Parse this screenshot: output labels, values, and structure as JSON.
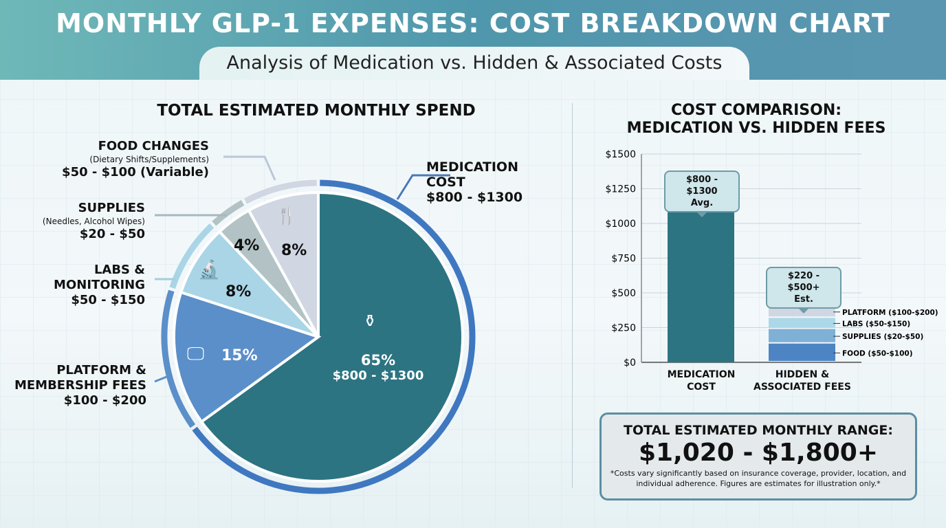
{
  "header": {
    "title": "MONTHLY GLP-1 EXPENSES: COST BREAKDOWN CHART",
    "subtitle": "Analysis of Medication vs. Hidden & Associated Costs"
  },
  "chart_data": [
    {
      "type": "pie",
      "title": "TOTAL ESTIMATED MONTHLY SPEND",
      "slices": [
        {
          "name": "MEDICATION COST",
          "detail": "",
          "range": "$800 - $1300",
          "percent": 65,
          "label": "65%",
          "color": "#2c7482",
          "icon": "medicine-bottle-icon"
        },
        {
          "name": "PLATFORM & MEMBERSHIP FEES",
          "detail": "",
          "range": "$100 - $200",
          "percent": 15,
          "label": "15%",
          "color": "#5b8fc9",
          "icon": "computer-check-icon"
        },
        {
          "name": "LABS & MONITORING",
          "detail": "",
          "range": "$50 - $150",
          "percent": 8,
          "label": "8%",
          "color": "#a9d5e7",
          "icon": "microscope-icon"
        },
        {
          "name": "SUPPLIES",
          "detail": "(Needles, Alcohol Wipes)",
          "range": "$20 - $50",
          "percent": 4,
          "label": "4%",
          "color": "#b3c3c5",
          "icon": ""
        },
        {
          "name": "FOOD CHANGES",
          "detail": "(Dietary Shifts/Supplements)",
          "range": "$50 - $100 (Variable)",
          "percent": 8,
          "label": "8%",
          "color": "#d0d7e3",
          "icon": "fork-leaf-icon"
        }
      ],
      "center_range": "$800 - $1300"
    },
    {
      "type": "bar",
      "title": "COST COMPARISON: MEDICATION VS. HIDDEN FEES",
      "ylim": [
        0,
        1500
      ],
      "yticks": [
        0,
        250,
        500,
        750,
        1000,
        1250,
        1500
      ],
      "ytick_labels": [
        "$0",
        "$250",
        "$500",
        "$750",
        "$1000",
        "$1250",
        "$1500"
      ],
      "categories": [
        "MEDICATION COST",
        "HIDDEN & ASSOCIATED FEES"
      ],
      "medication": {
        "value": 1100,
        "color": "#2c7482",
        "callout": "$800 - $1300",
        "callout_sub": "Avg."
      },
      "hidden": {
        "callout": "$220 - $500+",
        "callout_sub": "Est.",
        "segments": [
          {
            "name": "FOOD ($50-$100)",
            "value": 135,
            "color": "#4d84c4"
          },
          {
            "name": "SUPPLIES ($20-$50)",
            "value": 105,
            "color": "#7fb0d6"
          },
          {
            "name": "LABS ($50-$150)",
            "value": 80,
            "color": "#acd8e8"
          },
          {
            "name": "PLATFORM ($100-$200)",
            "value": 85,
            "color": "#d0d6e2"
          }
        ]
      }
    }
  ],
  "total": {
    "title": "TOTAL ESTIMATED MONTHLY RANGE:",
    "value": "$1,020 - $1,800+",
    "note": "*Costs vary significantly based on insurance coverage, provider, location, and individual adherence. Figures are estimates for illustration only.*"
  }
}
